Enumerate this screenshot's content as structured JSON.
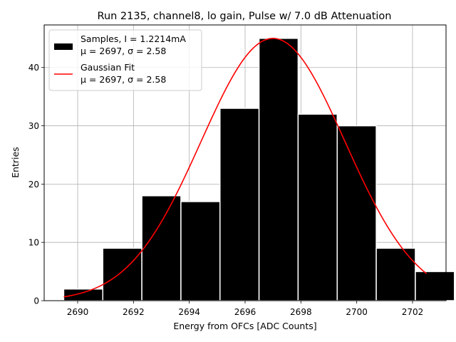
{
  "chart_data": {
    "type": "bar",
    "title": "Run 2135, channel8, lo gain, Pulse w/ 7.0 dB Attenuation",
    "xlabel": "Energy from OFCs [ADC Counts]",
    "ylabel": "Entries",
    "xlim": [
      2688.8,
      2703.2
    ],
    "ylim": [
      0,
      47.3
    ],
    "x_ticks": [
      2690,
      2692,
      2694,
      2696,
      2698,
      2700,
      2702
    ],
    "y_ticks": [
      0,
      10,
      20,
      30,
      40
    ],
    "grid": true,
    "legend_position": "top-left",
    "histogram": {
      "name": "Samples, I = 1.2214mA",
      "stats": "μ = 2697, σ = 2.58",
      "color": "#000000",
      "edge_color": "#ffffff",
      "bins": [
        {
          "x0": 2689.5,
          "x1": 2690.9,
          "count": 2
        },
        {
          "x0": 2690.9,
          "x1": 2692.3,
          "count": 9
        },
        {
          "x0": 2692.3,
          "x1": 2693.7,
          "count": 18
        },
        {
          "x0": 2693.7,
          "x1": 2695.1,
          "count": 17
        },
        {
          "x0": 2695.1,
          "x1": 2696.5,
          "count": 33
        },
        {
          "x0": 2696.5,
          "x1": 2697.9,
          "count": 45
        },
        {
          "x0": 2697.9,
          "x1": 2699.3,
          "count": 32
        },
        {
          "x0": 2699.3,
          "x1": 2700.7,
          "count": 30
        },
        {
          "x0": 2700.7,
          "x1": 2702.1,
          "count": 9
        },
        {
          "x0": 2702.1,
          "x1": 2703.5,
          "count": 5
        }
      ]
    },
    "fit": {
      "name": "Gaussian Fit",
      "stats": "μ = 2697, σ = 2.58",
      "color": "#ff0000",
      "mu": 2697.0,
      "sigma": 2.58,
      "amplitude": 45.0,
      "x_range": [
        2689.5,
        2702.5
      ]
    }
  }
}
